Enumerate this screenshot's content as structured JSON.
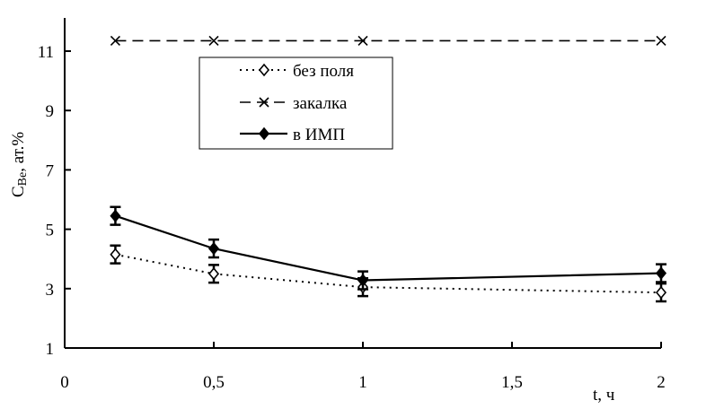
{
  "chart_data": {
    "type": "line",
    "title": "",
    "xlabel": "t, ч",
    "ylabel": "C",
    "ylabel_sub": "Be",
    "ylabel_suffix": ", ат.%",
    "xlim": [
      0,
      2
    ],
    "ylim": [
      1,
      12
    ],
    "xticks": [
      0,
      0.5,
      1,
      1.5,
      2
    ],
    "xtick_labels": [
      "0",
      "0,5",
      "1",
      "1,5",
      "2"
    ],
    "yticks": [
      1,
      3,
      5,
      7,
      9,
      11
    ],
    "ytick_labels": [
      "1",
      "3",
      "5",
      "7",
      "9",
      "11"
    ],
    "grid": false,
    "legend_position": "top-center",
    "x": [
      0.17,
      0.5,
      1,
      2
    ],
    "series": [
      {
        "name": "без поля",
        "style": "dotted",
        "marker": "diamond-open",
        "values": [
          4.15,
          3.5,
          3.05,
          2.87
        ],
        "error": 0.3
      },
      {
        "name": "закалка",
        "style": "dashed",
        "marker": "x",
        "values": [
          11.35,
          11.35,
          11.35,
          11.35
        ],
        "error": 0
      },
      {
        "name": "в ИМП",
        "style": "solid",
        "marker": "diamond-filled",
        "values": [
          5.45,
          4.35,
          3.28,
          3.52
        ],
        "error": 0.3
      }
    ]
  }
}
